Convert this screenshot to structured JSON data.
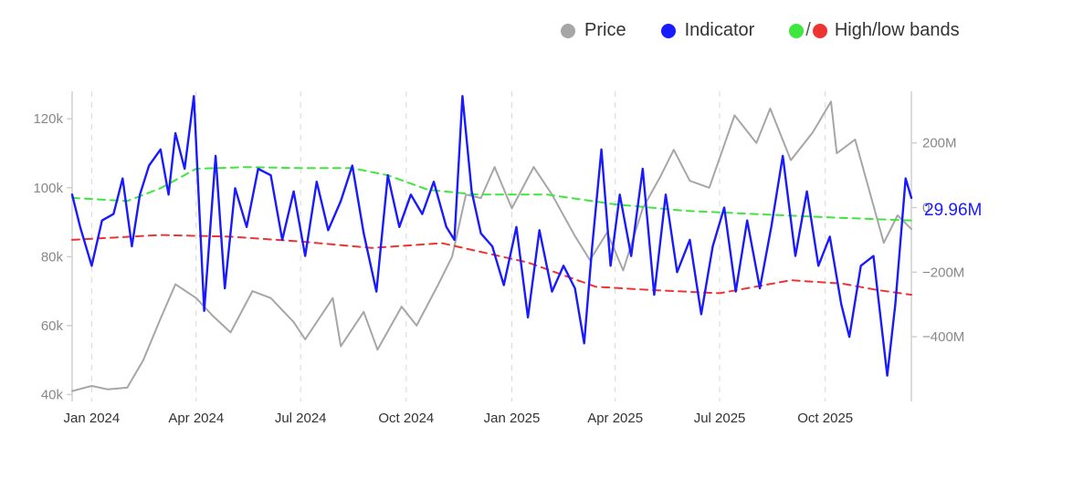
{
  "legend": {
    "price_label": "Price",
    "indicator_label": "Indicator",
    "bands_label": "High/low bands",
    "bands_separator": "/"
  },
  "last_value_label": "29.96M",
  "colors": {
    "price": "#a6a6a6",
    "indicator": "#1a1aff",
    "high_band": "#3ee63e",
    "low_band": "#ee3333",
    "axis": "#d0d0d0",
    "gridline": "#d8d8d8",
    "tick_text": "#888888",
    "x_tick_text": "#333333"
  },
  "chart_data": {
    "type": "line",
    "x_range": [
      "2023-12-15",
      "2025-12-15"
    ],
    "left_axis": {
      "range": [
        38000,
        128000
      ],
      "ticks": [
        40000,
        60000,
        80000,
        100000,
        120000
      ],
      "tick_labels": [
        "40k",
        "60k",
        "80k",
        "100k",
        "120k"
      ]
    },
    "right_axis": {
      "range": [
        -600,
        360
      ],
      "ticks": [
        -400,
        -200,
        0,
        200
      ],
      "tick_labels": [
        "−400M",
        "−200M",
        "0",
        "200M"
      ],
      "unit": "M"
    },
    "x_ticks": [
      {
        "date": "2024-01-01",
        "label": "Jan 2024"
      },
      {
        "date": "2024-04-01",
        "label": "Apr 2024"
      },
      {
        "date": "2024-07-01",
        "label": "Jul 2024"
      },
      {
        "date": "2024-10-01",
        "label": "Oct 2024"
      },
      {
        "date": "2025-01-01",
        "label": "Jan 2025"
      },
      {
        "date": "2025-04-01",
        "label": "Apr 2025"
      },
      {
        "date": "2025-07-01",
        "label": "Jul 2025"
      },
      {
        "date": "2025-10-01",
        "label": "Oct 2025"
      }
    ],
    "grid": {
      "vertical_dashed": true,
      "horizontal": false
    },
    "legend_position": "top-right",
    "series": [
      {
        "name": "Price",
        "axis": "left",
        "style": "solid",
        "points": [
          [
            "2023-12-15",
            41000
          ],
          [
            "2024-01-01",
            42500
          ],
          [
            "2024-01-15",
            41500
          ],
          [
            "2024-02-01",
            42000
          ],
          [
            "2024-02-15",
            50000
          ],
          [
            "2024-03-01",
            62000
          ],
          [
            "2024-03-14",
            72000
          ],
          [
            "2024-04-01",
            68000
          ],
          [
            "2024-04-15",
            63000
          ],
          [
            "2024-05-01",
            58000
          ],
          [
            "2024-05-20",
            70000
          ],
          [
            "2024-06-05",
            68000
          ],
          [
            "2024-06-25",
            61000
          ],
          [
            "2024-07-05",
            56000
          ],
          [
            "2024-07-29",
            68000
          ],
          [
            "2024-08-05",
            54000
          ],
          [
            "2024-08-25",
            64000
          ],
          [
            "2024-09-06",
            53000
          ],
          [
            "2024-09-27",
            65500
          ],
          [
            "2024-10-10",
            60000
          ],
          [
            "2024-10-29",
            72000
          ],
          [
            "2024-11-10",
            80000
          ],
          [
            "2024-11-22",
            98000
          ],
          [
            "2024-12-05",
            97000
          ],
          [
            "2024-12-17",
            106000
          ],
          [
            "2025-01-01",
            94000
          ],
          [
            "2025-01-20",
            106000
          ],
          [
            "2025-02-05",
            98000
          ],
          [
            "2025-02-25",
            86000
          ],
          [
            "2025-03-10",
            79000
          ],
          [
            "2025-03-25",
            87000
          ],
          [
            "2025-04-08",
            76000
          ],
          [
            "2025-04-25",
            94000
          ],
          [
            "2025-05-10",
            103000
          ],
          [
            "2025-05-22",
            111000
          ],
          [
            "2025-06-05",
            102000
          ],
          [
            "2025-06-22",
            100000
          ],
          [
            "2025-07-14",
            121000
          ],
          [
            "2025-08-02",
            113000
          ],
          [
            "2025-08-14",
            123000
          ],
          [
            "2025-09-01",
            108000
          ],
          [
            "2025-09-20",
            116000
          ],
          [
            "2025-10-06",
            125000
          ],
          [
            "2025-10-11",
            110000
          ],
          [
            "2025-10-27",
            114000
          ],
          [
            "2025-11-21",
            84000
          ],
          [
            "2025-12-03",
            92000
          ],
          [
            "2025-12-15",
            88000
          ]
        ]
      },
      {
        "name": "Indicator",
        "axis": "right",
        "style": "solid",
        "points": [
          [
            "2023-12-15",
            40
          ],
          [
            "2023-12-22",
            -60
          ],
          [
            "2024-01-01",
            -180
          ],
          [
            "2024-01-10",
            -40
          ],
          [
            "2024-01-20",
            -20
          ],
          [
            "2024-01-28",
            90
          ],
          [
            "2024-02-05",
            -120
          ],
          [
            "2024-02-12",
            40
          ],
          [
            "2024-02-20",
            130
          ],
          [
            "2024-03-01",
            180
          ],
          [
            "2024-03-08",
            40
          ],
          [
            "2024-03-14",
            230
          ],
          [
            "2024-03-22",
            120
          ],
          [
            "2024-03-30",
            345
          ],
          [
            "2024-04-08",
            -320
          ],
          [
            "2024-04-18",
            160
          ],
          [
            "2024-04-26",
            -250
          ],
          [
            "2024-05-05",
            60
          ],
          [
            "2024-05-15",
            -60
          ],
          [
            "2024-05-25",
            120
          ],
          [
            "2024-06-05",
            100
          ],
          [
            "2024-06-15",
            -100
          ],
          [
            "2024-06-25",
            50
          ],
          [
            "2024-07-05",
            -150
          ],
          [
            "2024-07-15",
            80
          ],
          [
            "2024-07-25",
            -70
          ],
          [
            "2024-08-05",
            20
          ],
          [
            "2024-08-15",
            130
          ],
          [
            "2024-08-25",
            -80
          ],
          [
            "2024-09-05",
            -260
          ],
          [
            "2024-09-15",
            100
          ],
          [
            "2024-09-25",
            -60
          ],
          [
            "2024-10-05",
            40
          ],
          [
            "2024-10-15",
            -20
          ],
          [
            "2024-10-25",
            80
          ],
          [
            "2024-11-05",
            -60
          ],
          [
            "2024-11-12",
            -100
          ],
          [
            "2024-11-19",
            345
          ],
          [
            "2024-11-27",
            50
          ],
          [
            "2024-12-05",
            -80
          ],
          [
            "2024-12-15",
            -120
          ],
          [
            "2024-12-25",
            -240
          ],
          [
            "2025-01-05",
            -60
          ],
          [
            "2025-01-15",
            -340
          ],
          [
            "2025-01-25",
            -70
          ],
          [
            "2025-02-05",
            -260
          ],
          [
            "2025-02-15",
            -180
          ],
          [
            "2025-02-25",
            -250
          ],
          [
            "2025-03-05",
            -420
          ],
          [
            "2025-03-12",
            -120
          ],
          [
            "2025-03-20",
            180
          ],
          [
            "2025-03-28",
            -180
          ],
          [
            "2025-04-05",
            40
          ],
          [
            "2025-04-15",
            -150
          ],
          [
            "2025-04-25",
            120
          ],
          [
            "2025-05-05",
            -270
          ],
          [
            "2025-05-15",
            40
          ],
          [
            "2025-05-25",
            -200
          ],
          [
            "2025-06-05",
            -100
          ],
          [
            "2025-06-15",
            -330
          ],
          [
            "2025-06-25",
            -120
          ],
          [
            "2025-07-05",
            0
          ],
          [
            "2025-07-15",
            -260
          ],
          [
            "2025-07-25",
            -40
          ],
          [
            "2025-08-05",
            -250
          ],
          [
            "2025-08-15",
            -60
          ],
          [
            "2025-08-25",
            160
          ],
          [
            "2025-09-05",
            -150
          ],
          [
            "2025-09-15",
            50
          ],
          [
            "2025-09-25",
            -180
          ],
          [
            "2025-10-05",
            -90
          ],
          [
            "2025-10-15",
            -300
          ],
          [
            "2025-10-22",
            -400
          ],
          [
            "2025-11-01",
            -180
          ],
          [
            "2025-11-12",
            -150
          ],
          [
            "2025-11-24",
            -520
          ],
          [
            "2025-12-01",
            -300
          ],
          [
            "2025-12-10",
            90
          ],
          [
            "2025-12-15",
            30
          ]
        ]
      },
      {
        "name": "High band",
        "axis": "right",
        "style": "dashed",
        "points": [
          [
            "2023-12-15",
            30
          ],
          [
            "2024-02-01",
            20
          ],
          [
            "2024-03-01",
            60
          ],
          [
            "2024-04-01",
            120
          ],
          [
            "2024-05-15",
            125
          ],
          [
            "2024-07-01",
            122
          ],
          [
            "2024-08-15",
            122
          ],
          [
            "2024-09-15",
            100
          ],
          [
            "2024-10-20",
            55
          ],
          [
            "2024-12-01",
            40
          ],
          [
            "2025-02-01",
            40
          ],
          [
            "2025-04-01",
            10
          ],
          [
            "2025-06-01",
            -10
          ],
          [
            "2025-08-01",
            -20
          ],
          [
            "2025-10-01",
            -30
          ],
          [
            "2025-12-15",
            -40
          ]
        ]
      },
      {
        "name": "Low band",
        "axis": "right",
        "style": "dashed",
        "points": [
          [
            "2023-12-15",
            -100
          ],
          [
            "2024-03-01",
            -85
          ],
          [
            "2024-05-01",
            -90
          ],
          [
            "2024-07-01",
            -105
          ],
          [
            "2024-09-01",
            -125
          ],
          [
            "2024-11-01",
            -110
          ],
          [
            "2025-01-15",
            -170
          ],
          [
            "2025-03-15",
            -245
          ],
          [
            "2025-05-01",
            -255
          ],
          [
            "2025-07-01",
            -265
          ],
          [
            "2025-09-01",
            -225
          ],
          [
            "2025-10-15",
            -235
          ],
          [
            "2025-11-15",
            -255
          ],
          [
            "2025-12-15",
            -270
          ]
        ]
      }
    ]
  }
}
